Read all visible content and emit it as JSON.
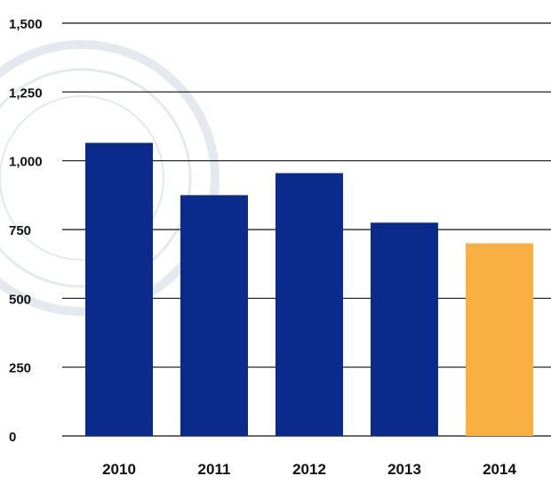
{
  "chart_data": {
    "type": "bar",
    "title": "",
    "xlabel": "",
    "ylabel": "",
    "categories": [
      "2010",
      "2011",
      "2012",
      "2013",
      "2014"
    ],
    "values": [
      1065,
      875,
      955,
      775,
      700
    ],
    "bar_colors": [
      "#0a2a8c",
      "#0a2a8c",
      "#0a2a8c",
      "#0a2a8c",
      "#f9b042"
    ],
    "ylim": [
      0,
      1500
    ],
    "yticks": [
      0,
      250,
      500,
      750,
      1000,
      1250,
      1500
    ],
    "ytick_labels": [
      "0",
      "250",
      "500",
      "750",
      "1,000",
      "1,250",
      "1,500"
    ],
    "grid": true,
    "legend": "none",
    "watermark": "faint circular seal"
  }
}
